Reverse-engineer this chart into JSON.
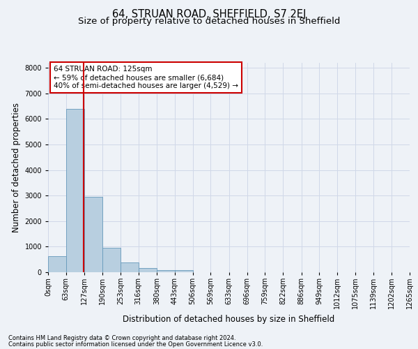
{
  "title": "64, STRUAN ROAD, SHEFFIELD, S7 2EJ",
  "subtitle": "Size of property relative to detached houses in Sheffield",
  "xlabel": "Distribution of detached houses by size in Sheffield",
  "ylabel": "Number of detached properties",
  "footnote1": "Contains HM Land Registry data © Crown copyright and database right 2024.",
  "footnote2": "Contains public sector information licensed under the Open Government Licence v3.0.",
  "annotation_line1": "64 STRUAN ROAD: 125sqm",
  "annotation_line2": "← 59% of detached houses are smaller (6,684)",
  "annotation_line3": "40% of semi-detached houses are larger (4,529) →",
  "property_size": 125,
  "bar_labels": [
    "0sqm",
    "63sqm",
    "127sqm",
    "190sqm",
    "253sqm",
    "316sqm",
    "380sqm",
    "443sqm",
    "506sqm",
    "569sqm",
    "633sqm",
    "696sqm",
    "759sqm",
    "822sqm",
    "886sqm",
    "949sqm",
    "1012sqm",
    "1075sqm",
    "1139sqm",
    "1202sqm",
    "1265sqm"
  ],
  "bar_values": [
    620,
    6400,
    2940,
    960,
    380,
    165,
    90,
    75,
    0,
    0,
    0,
    0,
    0,
    0,
    0,
    0,
    0,
    0,
    0,
    0,
    0
  ],
  "bin_edges": [
    0,
    63,
    127,
    190,
    253,
    316,
    380,
    443,
    506,
    569,
    633,
    696,
    759,
    822,
    886,
    949,
    1012,
    1075,
    1139,
    1202,
    1265
  ],
  "bar_color": "#b8cfe0",
  "bar_edge_color": "#6699bb",
  "vline_color": "#cc0000",
  "vline_x": 125,
  "annotation_box_color": "#cc0000",
  "annotation_bg": "white",
  "ylim": [
    0,
    8200
  ],
  "yticks": [
    0,
    1000,
    2000,
    3000,
    4000,
    5000,
    6000,
    7000,
    8000
  ],
  "grid_color": "#d0d8e8",
  "bg_color": "#eef2f7",
  "title_fontsize": 10.5,
  "subtitle_fontsize": 9.5,
  "axis_label_fontsize": 8.5,
  "tick_fontsize": 7,
  "annotation_fontsize": 7.5,
  "footnote_fontsize": 6
}
